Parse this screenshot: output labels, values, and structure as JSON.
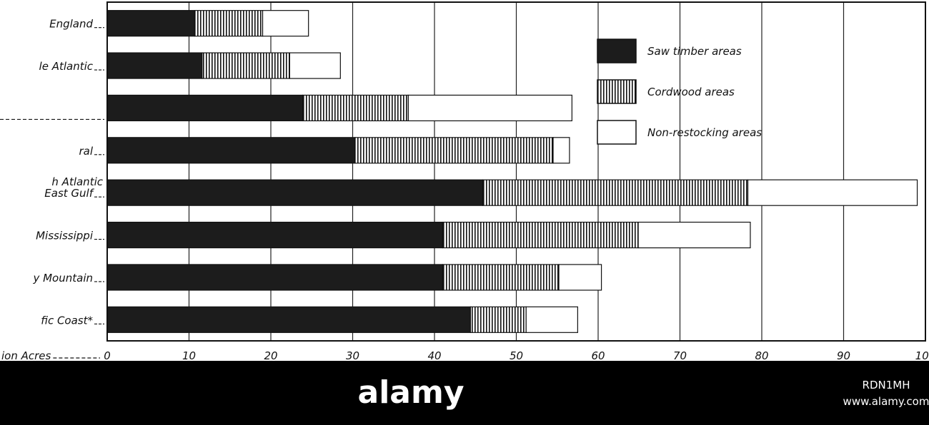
{
  "chart_data": {
    "type": "stacked-barh",
    "categories": [
      "England",
      "le Atlantic",
      null,
      "ral",
      [
        "h Atlantic",
        "East Gulf"
      ],
      "Mississippi",
      "y Mountain",
      "fic Coast*"
    ],
    "series": [
      {
        "name": "Saw timber areas",
        "color": "#1c1c1c",
        "fill_style": "solid",
        "values": [
          10.7,
          11.6,
          23.9,
          30.3,
          45.9,
          41.0,
          41.0,
          44.4
        ]
      },
      {
        "name": "Cordwood areas",
        "color": "#111111",
        "fill_style": "vertical-hatch",
        "values": [
          8.3,
          10.7,
          12.9,
          24.2,
          32.4,
          23.9,
          14.2,
          6.8
        ]
      },
      {
        "name": "Non-restocking areas",
        "color": "#ffffff",
        "fill_style": "solid",
        "values": [
          5.6,
          6.2,
          20.0,
          2.0,
          20.7,
          13.7,
          5.2,
          6.3
        ]
      }
    ],
    "xlabel": "ion Acres",
    "xlim": [
      0,
      100
    ],
    "xticks": [
      0,
      10,
      20,
      30,
      40,
      50,
      60,
      70,
      80,
      90,
      100
    ],
    "grid": true,
    "legend": "upper right"
  },
  "watermark": {
    "brand": "alamy",
    "id": "RDN1MH",
    "url": "www.alamy.com"
  }
}
